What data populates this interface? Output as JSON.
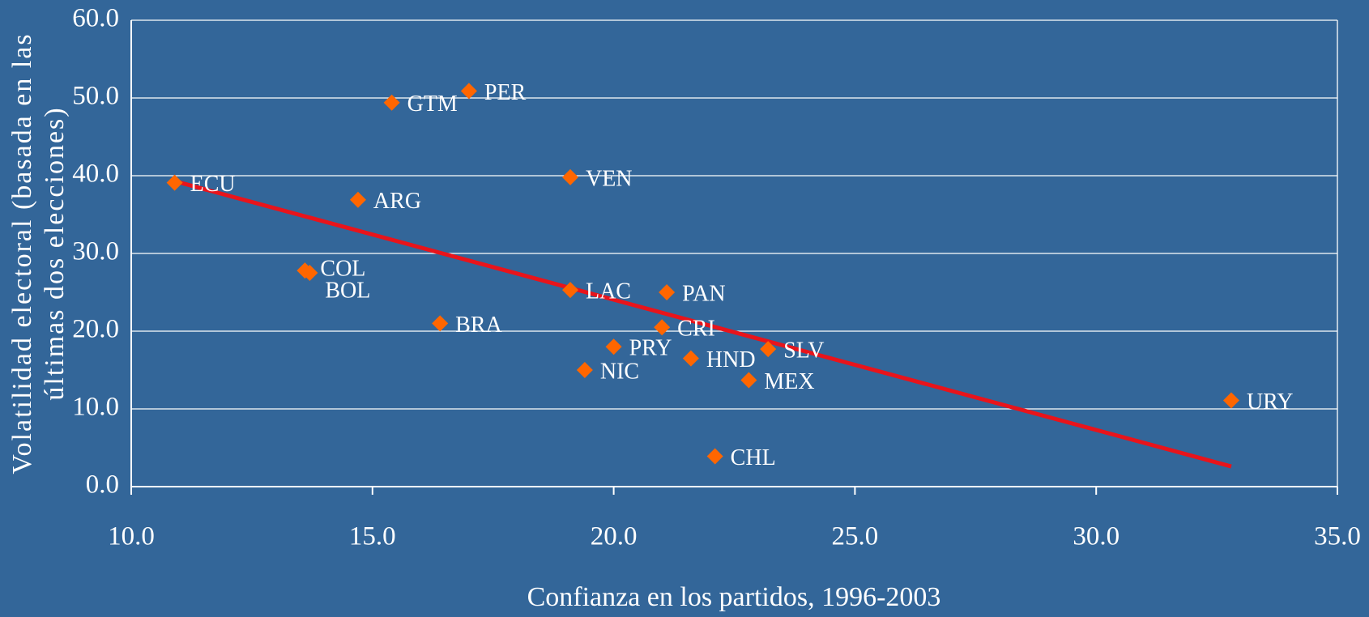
{
  "chart_data": {
    "type": "scatter",
    "x_label": "Confianza en los partidos, 1996-2003",
    "y_label": [
      "Volatilidad electoral (basada en las",
      "últimas dos elecciones)"
    ],
    "labels": [
      "ECU",
      "GTM",
      "PER",
      "VEN",
      "ARG",
      "COL",
      "BOL",
      "BRA",
      "LAC",
      "PAN",
      "CRI",
      "PRY",
      "HND",
      "SLV",
      "NIC",
      "MEX",
      "CHL",
      "URY"
    ],
    "x": [
      10.9,
      15.4,
      17.0,
      19.1,
      14.7,
      13.6,
      13.7,
      16.4,
      19.1,
      21.1,
      21.0,
      20.0,
      21.6,
      23.2,
      19.4,
      22.8,
      22.1,
      32.8
    ],
    "values": [
      39.1,
      49.4,
      50.9,
      39.8,
      36.9,
      27.8,
      27.5,
      21.0,
      25.3,
      25.0,
      20.5,
      18.0,
      16.5,
      17.7,
      15.0,
      13.7,
      3.9,
      11.1
    ],
    "color": "#ff6600",
    "trend": {
      "x": [
        10.9,
        32.8
      ],
      "values": [
        39.3,
        2.6
      ],
      "color": "#e8141b"
    },
    "xlim": [
      10,
      35
    ],
    "ylim": [
      0,
      60
    ],
    "xticks": [
      {
        "value": 10,
        "label": "10.0"
      },
      {
        "value": 15,
        "label": "15.0"
      },
      {
        "value": 20,
        "label": "20.0"
      },
      {
        "value": 25,
        "label": "25.0"
      },
      {
        "value": 30,
        "label": "30.0"
      },
      {
        "value": 35,
        "label": "35.0"
      }
    ],
    "yticks": [
      {
        "value": 0,
        "label": "0.0"
      },
      {
        "value": 10,
        "label": "10.0"
      },
      {
        "value": 20,
        "label": "20.0"
      },
      {
        "value": 30,
        "label": "30.0"
      },
      {
        "value": 40,
        "label": "40.0"
      },
      {
        "value": 50,
        "label": "50.0"
      },
      {
        "value": 60,
        "label": "60.0"
      }
    ],
    "grid": true
  }
}
